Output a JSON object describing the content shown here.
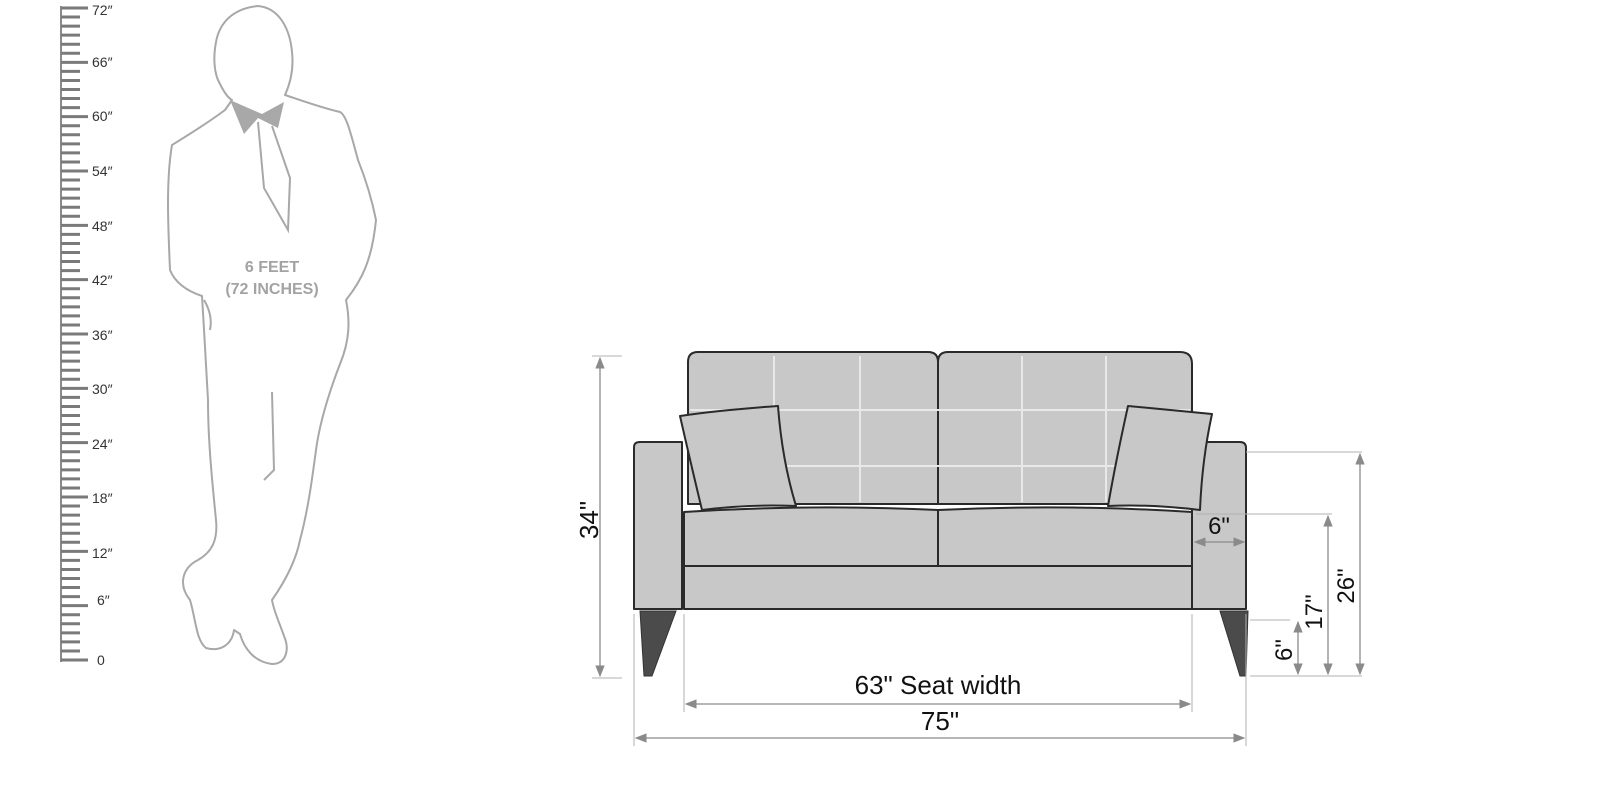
{
  "ruler": {
    "labels": [
      "72″",
      "66″",
      "60″",
      "54″",
      "48″",
      "42″",
      "36″",
      "30″",
      "24″",
      "18″",
      "12″",
      "6″",
      "0"
    ]
  },
  "person": {
    "label_line1": "6 FEET",
    "label_line2": "(72 INCHES)"
  },
  "sofa_dimensions": {
    "overall_height": "34\"",
    "arm_width": "6\"",
    "seat_height": "17\"",
    "arm_height": "26\"",
    "leg_height": "6\"",
    "seat_width": "63\" Seat width",
    "overall_width": "75\""
  },
  "colors": {
    "person_outline": "#a8a8a8",
    "sofa_fill": "#c8c8c8",
    "sofa_outline": "#2a2a2a",
    "leg_color": "#4b4b4b",
    "dimension_line": "#8a8a8a"
  }
}
